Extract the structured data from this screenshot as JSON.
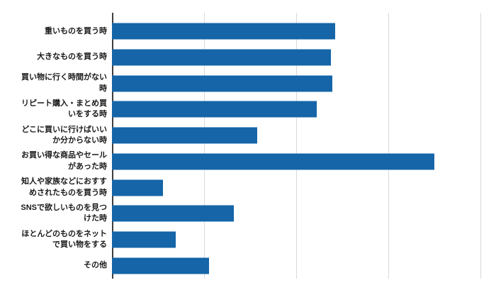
{
  "chart_data": {
    "type": "bar",
    "orientation": "horizontal",
    "title": "",
    "xlabel": "",
    "ylabel": "",
    "categories": [
      "重いものを買う時",
      "大きなものを買う時",
      "買い物に行く時間がない時",
      "リピート購入・まとめ買いをする時",
      "どこに買いに行けばいいか分からない時",
      "お買い得な商品やセールがあった時",
      "知人や家族などにおすすめされたものを買う時",
      "SNSで欲しいものを見つけた時",
      "ほとんどのものをネットで買い物をする",
      "その他"
    ],
    "display_labels": [
      "重いものを買う時",
      "大きなものを買う時",
      "買い物に行く時間がない\n時",
      "リピート購入・まとめ買\nいをする時",
      "どこに買いに行けばいい\nか分からない時",
      "お買い得な商品やセール\nがあった時",
      "知人や家族などにおすす\nめされたものを買う時",
      "SNSで欲しいものを見つ\nけた時",
      "ほとんどのものをネット\nで買い物をする",
      "その他"
    ],
    "values": [
      24.2,
      23.8,
      23.9,
      22.2,
      15.8,
      35.0,
      5.5,
      13.2,
      6.9,
      10.5
    ],
    "xlim": [
      0,
      41
    ],
    "gridline_interval": 10,
    "axis_tick_labels_visible": false,
    "legend": "none",
    "grid": "vertical",
    "bar_color": "#1565a8",
    "gridline_color": "#d9d9d9",
    "axis_line_color": "#3f3f3f",
    "label_color": "#1a1a1a"
  }
}
